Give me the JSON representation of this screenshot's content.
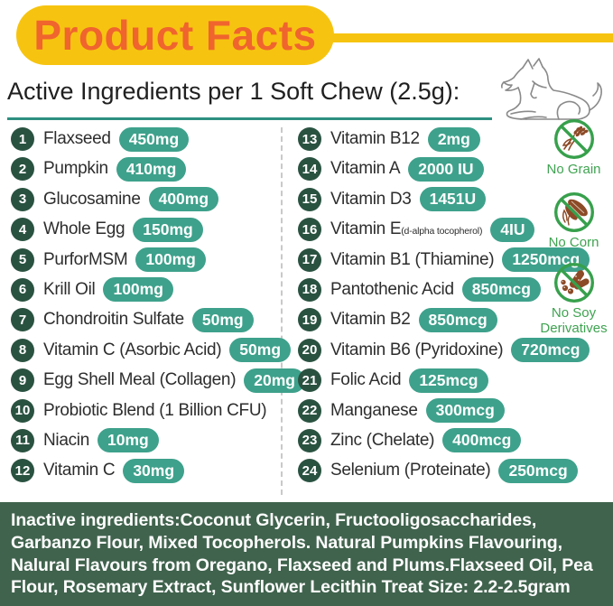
{
  "header": {
    "title": "Product Facts"
  },
  "subheader": {
    "title": "Active Ingredients per 1 Soft Chew (2.5g):"
  },
  "ingredients": {
    "left": [
      {
        "num": "1",
        "label": "Flaxseed",
        "amount": "450mg"
      },
      {
        "num": "2",
        "label": "Pumpkin",
        "amount": "410mg"
      },
      {
        "num": "3",
        "label": "Glucosamine",
        "amount": "400mg"
      },
      {
        "num": "4",
        "label": "Whole Egg",
        "amount": "150mg"
      },
      {
        "num": "5",
        "label": "PurforMSM",
        "amount": "100mg"
      },
      {
        "num": "6",
        "label": "Krill Oil",
        "amount": "100mg"
      },
      {
        "num": "7",
        "label": "Chondroitin Sulfate",
        "amount": "50mg"
      },
      {
        "num": "8",
        "label": "Vitamin C (Asorbic Acid)",
        "amount": "50mg"
      },
      {
        "num": "9",
        "label": "Egg Shell Meal (Collagen)",
        "amount": "20mg"
      },
      {
        "num": "10",
        "label": "Probiotic Blend (1 Billion CFU)",
        "amount": null
      },
      {
        "num": "11",
        "label": "Niacin",
        "amount": "10mg"
      },
      {
        "num": "12",
        "label": "Vitamin C",
        "amount": "30mg"
      }
    ],
    "right": [
      {
        "num": "13",
        "label": "Vitamin B12",
        "amount": "2mg"
      },
      {
        "num": "14",
        "label": "Vitamin A",
        "amount": "2000 IU"
      },
      {
        "num": "15",
        "label": "Vitamin D3",
        "amount": "1451U"
      },
      {
        "num": "16",
        "label": "Vitamin E",
        "label_small": "(d-alpha tocopherol)",
        "amount": "4IU"
      },
      {
        "num": "17",
        "label": "Vitamin B1 (Thiamine)",
        "amount": "1250mcg"
      },
      {
        "num": "18",
        "label": "Pantothenic Acid",
        "amount": "850mcg"
      },
      {
        "num": "19",
        "label": "Vitamin B2",
        "amount": "850mcg"
      },
      {
        "num": "20",
        "label": "Vitamin B6 (Pyridoxine)",
        "amount": "720mcg"
      },
      {
        "num": "21",
        "label": "Folic Acid",
        "amount": "125mcg"
      },
      {
        "num": "22",
        "label": "Manganese",
        "amount": "300mcg"
      },
      {
        "num": "23",
        "label": "Zinc (Chelate)",
        "amount": "400mcg"
      },
      {
        "num": "24",
        "label": "Selenium (Proteinate)",
        "amount": "250mcg"
      }
    ]
  },
  "badges": [
    {
      "icon": "no-grain-icon",
      "label": "No Grain"
    },
    {
      "icon": "no-corn-icon",
      "label": "No Corn"
    },
    {
      "icon": "no-soy-icon",
      "label": "No Soy Derivatives"
    }
  ],
  "footer": {
    "inactive_text": "Inactive ingredients:Coconut Glycerin, Fructooligosaccharides, Garbanzo Flour, Mixed Tocopherols. Natural Pumpkins Flavouring, Nalural Flavours from Oregano, Flaxseed and Plums.Flaxseed Oil, Pea Flour, Rosemary Extract, Sunflower Lecithin Treat Size: 2.2-2.5gram"
  },
  "colors": {
    "banner_yellow": "#F6C410",
    "title_orange": "#F0642E",
    "amount_pill_teal": "#3EA18B",
    "number_circle_green": "#2A5241",
    "underline_teal": "#2E9080",
    "badge_green": "#3FA351",
    "badge_brown": "#8C4A26",
    "footer_green": "#40634D"
  }
}
